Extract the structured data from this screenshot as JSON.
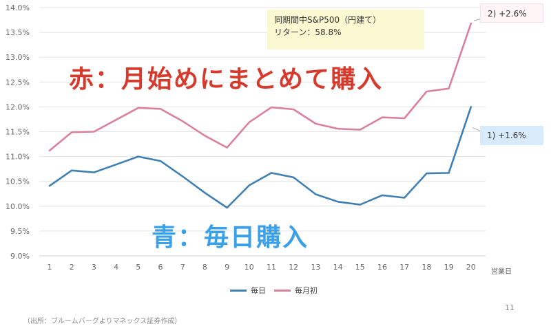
{
  "chart_data": {
    "type": "line",
    "x": [
      1,
      2,
      3,
      4,
      5,
      6,
      7,
      8,
      9,
      10,
      11,
      12,
      13,
      14,
      15,
      16,
      17,
      18,
      19,
      20
    ],
    "x_unit_label": "営業日",
    "ylim": [
      9.0,
      14.0
    ],
    "y_ticks": [
      "9.0%",
      "9.5%",
      "10.0%",
      "10.5%",
      "11.0%",
      "11.5%",
      "12.0%",
      "12.5%",
      "13.0%",
      "13.5%",
      "14.0%"
    ],
    "grid": true,
    "legend_position": "bottom",
    "series": [
      {
        "name": "毎日",
        "color": "#3f7fb1",
        "values": [
          10.41,
          10.72,
          10.68,
          10.84,
          11.0,
          10.91,
          10.6,
          10.27,
          9.97,
          10.42,
          10.67,
          10.58,
          10.24,
          10.09,
          10.03,
          10.22,
          10.17,
          10.66,
          10.67,
          12.0
        ]
      },
      {
        "name": "毎月初",
        "color": "#d9819b",
        "values": [
          11.12,
          11.49,
          11.5,
          11.74,
          11.98,
          11.96,
          11.71,
          11.42,
          11.18,
          11.69,
          11.99,
          11.95,
          11.66,
          11.56,
          11.54,
          11.79,
          11.77,
          12.31,
          12.37,
          13.68
        ]
      }
    ]
  },
  "annotations": {
    "red_label": "赤：月始めにまとめて購入",
    "blue_label": "青：毎日購入",
    "note_line1": "同期間中S&P500（円建て）",
    "note_line2": "リターン：58.8%",
    "callout_red": "2) +2.6%",
    "callout_blue": "1) +1.6%"
  },
  "page_number": "11",
  "source": "（出所：ブルームバーグよりマネックス証券作成）"
}
